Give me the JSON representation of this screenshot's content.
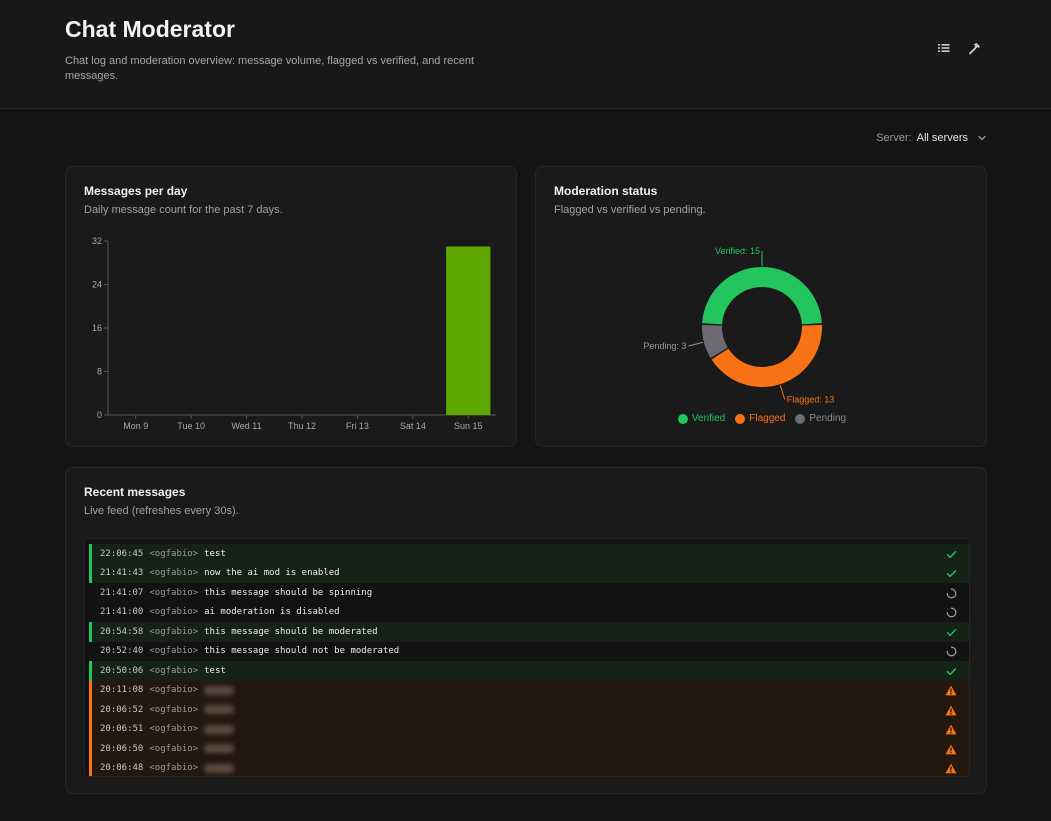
{
  "header": {
    "title": "Chat Moderator",
    "subtitle": "Chat log and moderation overview: message volume, flagged vs verified, and recent messages."
  },
  "filter": {
    "label": "Server:",
    "value": "All servers"
  },
  "cards": {
    "messages_per_day": {
      "title": "Messages per day",
      "subtitle": "Daily message count for the past 7 days."
    },
    "moderation_status": {
      "title": "Moderation status",
      "subtitle": "Flagged vs verified vs pending."
    },
    "recent_messages": {
      "title": "Recent messages",
      "subtitle": "Live feed (refreshes every 30s)."
    }
  },
  "chart_data": [
    {
      "type": "bar",
      "categories": [
        "Mon 9",
        "Tue 10",
        "Wed 11",
        "Thu 12",
        "Fri 13",
        "Sat 14",
        "Sun 15"
      ],
      "values": [
        0,
        0,
        0,
        0,
        0,
        0,
        31
      ],
      "yticks": [
        0,
        8,
        16,
        24,
        32
      ],
      "ylim": [
        0,
        32
      ],
      "color": "#5fa800"
    },
    {
      "type": "pie",
      "labels": [
        "Verified",
        "Flagged",
        "Pending"
      ],
      "values": [
        15,
        13,
        3
      ],
      "colors": [
        "#22c55e",
        "#f97316",
        "#6b6b73"
      ],
      "slice_labels": [
        "Verified: 15",
        "Flagged: 13",
        "Pending: 3"
      ]
    }
  ],
  "messages": [
    {
      "time": "22:06:45",
      "user": "<ogfabio>",
      "text": "test",
      "status": "verified"
    },
    {
      "time": "21:41:43",
      "user": "<ogfabio>",
      "text": "now the ai mod is enabled",
      "status": "verified"
    },
    {
      "time": "21:41:07",
      "user": "<ogfabio>",
      "text": "this message should be spinning",
      "status": "pending"
    },
    {
      "time": "21:41:00",
      "user": "<ogfabio>",
      "text": "ai moderation is disabled",
      "status": "pending"
    },
    {
      "time": "20:54:58",
      "user": "<ogfabio>",
      "text": "this message should be moderated",
      "status": "verified"
    },
    {
      "time": "20:52:40",
      "user": "<ogfabio>",
      "text": "this message should not be moderated",
      "status": "pending"
    },
    {
      "time": "20:50:06",
      "user": "<ogfabio>",
      "text": "test",
      "status": "verified"
    },
    {
      "time": "20:11:08",
      "user": "<ogfabio>",
      "text": "",
      "status": "flagged"
    },
    {
      "time": "20:06:52",
      "user": "<ogfabio>",
      "text": "",
      "status": "flagged"
    },
    {
      "time": "20:06:51",
      "user": "<ogfabio>",
      "text": "",
      "status": "flagged"
    },
    {
      "time": "20:06:50",
      "user": "<ogfabio>",
      "text": "",
      "status": "flagged"
    },
    {
      "time": "20:06:48",
      "user": "<ogfabio>",
      "text": "",
      "status": "flagged"
    }
  ],
  "icons": {
    "header_left": "list-icon",
    "header_right": "hammer-icon",
    "verified": "check-icon",
    "pending": "spinner-icon",
    "flagged": "warning-icon"
  }
}
